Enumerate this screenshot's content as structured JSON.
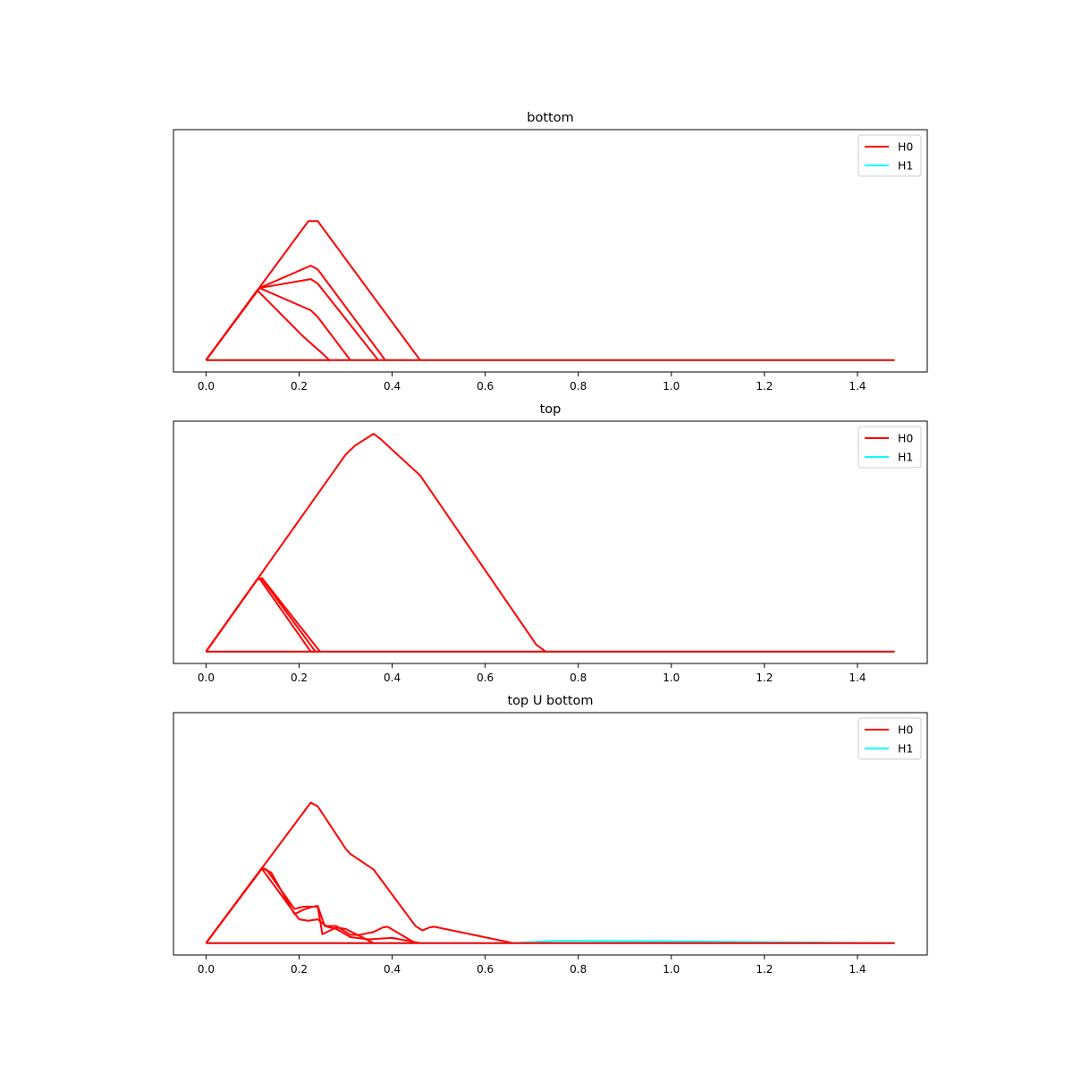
{
  "chart_data": [
    {
      "type": "line",
      "title": "bottom",
      "xlabel": "",
      "ylabel": "",
      "xlim": [
        -0.07,
        1.55
      ],
      "ylim": [
        -0.008,
        0.155
      ],
      "xticks": [
        "0.0",
        "0.2",
        "0.4",
        "0.6",
        "0.8",
        "1.0",
        "1.2",
        "1.4"
      ],
      "yticks": [],
      "grid": false,
      "legend": {
        "position": "top-right",
        "entries": [
          "H0",
          "H1"
        ]
      },
      "series": [
        {
          "name": "H0",
          "color": "#ff0000",
          "lines": [
            [
              [
                0.0,
                0.0
              ],
              [
                0.22,
                0.0935
              ],
              [
                0.24,
                0.0935
              ],
              [
                0.46,
                0.0
              ]
            ],
            [
              [
                0.0,
                0.0
              ],
              [
                0.115,
                0.0485
              ],
              [
                0.225,
                0.0635
              ],
              [
                0.24,
                0.061
              ],
              [
                0.385,
                0.0
              ]
            ],
            [
              [
                0.0,
                0.0
              ],
              [
                0.115,
                0.0485
              ],
              [
                0.225,
                0.0545
              ],
              [
                0.24,
                0.0515
              ],
              [
                0.37,
                0.0
              ]
            ],
            [
              [
                0.0,
                0.0
              ],
              [
                0.115,
                0.0485
              ],
              [
                0.225,
                0.0335
              ],
              [
                0.24,
                0.029
              ],
              [
                0.31,
                0.0
              ]
            ],
            [
              [
                0.0,
                0.0
              ],
              [
                0.11,
                0.047
              ],
              [
                0.21,
                0.0155
              ],
              [
                0.25,
                0.0045
              ],
              [
                0.265,
                0.0
              ]
            ],
            [
              [
                0.0,
                0.0
              ],
              [
                1.48,
                0.0
              ]
            ]
          ]
        },
        {
          "name": "H1",
          "color": "#00ffff",
          "lines": [
            [
              [
                0.0,
                0.0
              ],
              [
                1.48,
                0.0
              ]
            ]
          ]
        }
      ]
    },
    {
      "type": "line",
      "title": "top",
      "xlabel": "",
      "ylabel": "",
      "xlim": [
        -0.07,
        1.55
      ],
      "ylim": [
        -0.008,
        0.155
      ],
      "xticks": [
        "0.0",
        "0.2",
        "0.4",
        "0.6",
        "0.8",
        "1.0",
        "1.2",
        "1.4"
      ],
      "yticks": [],
      "grid": false,
      "legend": {
        "position": "top-right",
        "entries": [
          "H0",
          "H1"
        ]
      },
      "series": [
        {
          "name": "H0",
          "color": "#ff0000",
          "lines": [
            [
              [
                0.0,
                0.0
              ],
              [
                0.3,
                0.1325
              ],
              [
                0.32,
                0.1385
              ],
              [
                0.36,
                0.1465
              ],
              [
                0.375,
                0.143
              ],
              [
                0.46,
                0.1185
              ],
              [
                0.71,
                0.0045
              ],
              [
                0.73,
                0.0
              ]
            ],
            [
              [
                0.0,
                0.0
              ],
              [
                0.11,
                0.0485
              ],
              [
                0.12,
                0.0495
              ],
              [
                0.245,
                0.0
              ]
            ],
            [
              [
                0.0,
                0.0
              ],
              [
                0.11,
                0.0485
              ],
              [
                0.12,
                0.049
              ],
              [
                0.235,
                0.0
              ]
            ],
            [
              [
                0.0,
                0.0
              ],
              [
                0.11,
                0.0485
              ],
              [
                0.115,
                0.049
              ],
              [
                0.225,
                0.0
              ]
            ],
            [
              [
                0.0,
                0.0
              ],
              [
                1.48,
                0.0
              ]
            ]
          ]
        },
        {
          "name": "H1",
          "color": "#00ffff",
          "lines": [
            [
              [
                0.0,
                0.0
              ],
              [
                1.48,
                0.0
              ]
            ]
          ]
        }
      ]
    },
    {
      "type": "line",
      "title": "top U bottom",
      "xlabel": "",
      "ylabel": "",
      "xlim": [
        -0.07,
        1.55
      ],
      "ylim": [
        -0.008,
        0.155
      ],
      "xticks": [
        "0.0",
        "0.2",
        "0.4",
        "0.6",
        "0.8",
        "1.0",
        "1.2",
        "1.4"
      ],
      "yticks": [],
      "grid": false,
      "legend": {
        "position": "top-right",
        "entries": [
          "H0",
          "H1"
        ]
      },
      "series": [
        {
          "name": "H0",
          "color": "#ff0000",
          "lines": [
            [
              [
                0.0,
                0.0
              ],
              [
                0.225,
                0.0945
              ],
              [
                0.24,
                0.092
              ],
              [
                0.3,
                0.0635
              ],
              [
                0.31,
                0.06
              ],
              [
                0.36,
                0.0495
              ],
              [
                0.45,
                0.0115
              ],
              [
                0.465,
                0.0085
              ],
              [
                0.48,
                0.0105
              ],
              [
                0.49,
                0.011
              ],
              [
                0.66,
                0.0
              ]
            ],
            [
              [
                0.0,
                0.0
              ],
              [
                0.12,
                0.0505
              ],
              [
                0.14,
                0.0475
              ],
              [
                0.19,
                0.0195
              ],
              [
                0.21,
                0.0225
              ],
              [
                0.23,
                0.0245
              ],
              [
                0.24,
                0.025
              ],
              [
                0.255,
                0.0115
              ],
              [
                0.28,
                0.0115
              ],
              [
                0.31,
                0.0055
              ],
              [
                0.33,
                0.0055
              ],
              [
                0.36,
                0.0075
              ],
              [
                0.38,
                0.0105
              ],
              [
                0.39,
                0.011
              ],
              [
                0.45,
                0.0
              ]
            ],
            [
              [
                0.0,
                0.0
              ],
              [
                0.12,
                0.0505
              ],
              [
                0.13,
                0.0495
              ],
              [
                0.19,
                0.023
              ],
              [
                0.21,
                0.0245
              ],
              [
                0.24,
                0.0245
              ],
              [
                0.25,
                0.006
              ],
              [
                0.28,
                0.0105
              ],
              [
                0.3,
                0.0095
              ],
              [
                0.36,
                0.0
              ]
            ],
            [
              [
                0.0,
                0.0
              ],
              [
                0.12,
                0.05
              ],
              [
                0.2,
                0.016
              ],
              [
                0.22,
                0.015
              ],
              [
                0.24,
                0.016
              ],
              [
                0.26,
                0.011
              ],
              [
                0.28,
                0.0095
              ],
              [
                0.31,
                0.004
              ],
              [
                0.35,
                0.0025
              ],
              [
                0.4,
                0.0035
              ],
              [
                0.46,
                0.0
              ]
            ],
            [
              [
                0.0,
                0.0
              ],
              [
                1.48,
                0.0
              ]
            ]
          ]
        },
        {
          "name": "H1",
          "color": "#00ffff",
          "lines": [
            [
              [
                0.0,
                0.0
              ],
              [
                1.48,
                0.0
              ]
            ],
            [
              [
                0.66,
                0.0
              ],
              [
                0.75,
                0.0015
              ],
              [
                1.0,
                0.0012
              ],
              [
                1.2,
                0.0006
              ],
              [
                1.48,
                0.0
              ]
            ]
          ]
        }
      ]
    }
  ]
}
